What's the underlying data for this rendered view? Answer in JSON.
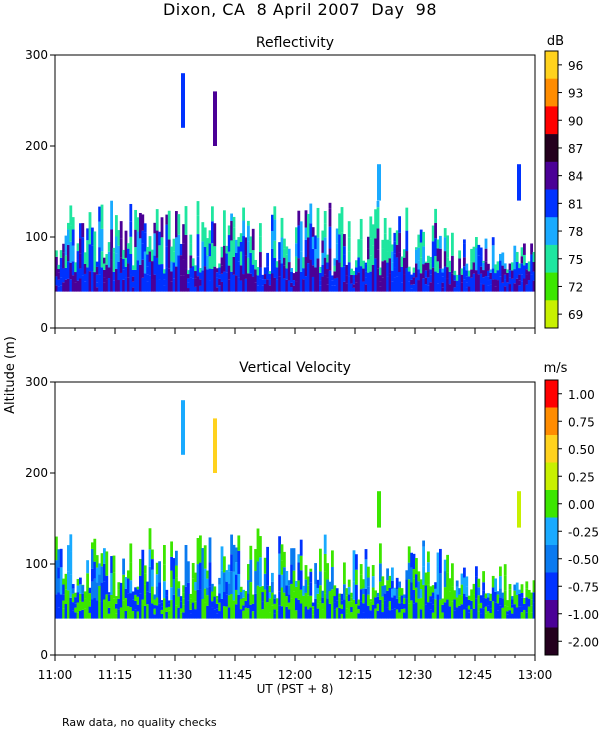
{
  "figure": {
    "title": "Dixon, CA  8 April 2007  Day  98",
    "footnote": "Raw data, no quality checks"
  },
  "chart_data": [
    {
      "type": "heatmap",
      "title": "Reflectivity",
      "colorbar_unit": "dB",
      "colorbar_ticks": [
        "96",
        "93",
        "90",
        "87",
        "84",
        "81",
        "78",
        "75",
        "72",
        "69"
      ],
      "colorbar_colors": [
        "#ffd21e",
        "#ff8c00",
        "#ff0000",
        "#24001e",
        "#4b0096",
        "#0032ff",
        "#19aaff",
        "#1fe6a0",
        "#3ce600",
        "#c8f000"
      ],
      "ylabel": "Altitude (m)",
      "ylim": [
        0,
        300
      ],
      "yticks": [
        0,
        100,
        200,
        300
      ],
      "xlim": [
        "11:00",
        "13:00"
      ],
      "base_altitude_m": 40,
      "echo_top_range_m": [
        60,
        140
      ],
      "dominant_values_dB": [
        75,
        78,
        81,
        84
      ],
      "elevated_echoes": [
        {
          "time": "11:32",
          "alt_range_m": [
            220,
            280
          ],
          "value_dB": 81
        },
        {
          "time": "11:40",
          "alt_range_m": [
            200,
            260
          ],
          "value_dB": 84
        },
        {
          "time": "12:21",
          "alt_range_m": [
            140,
            180
          ],
          "value_dB": 78
        },
        {
          "time": "12:56",
          "alt_range_m": [
            140,
            180
          ],
          "value_dB": 81
        }
      ]
    },
    {
      "type": "heatmap",
      "title": "Vertical Velocity",
      "colorbar_unit": "m/s",
      "colorbar_ticks": [
        "1.00",
        "0.75",
        "0.50",
        "0.25",
        "0.00",
        "-0.25",
        "-0.50",
        "-0.75",
        "-1.00",
        "-2.00"
      ],
      "colorbar_colors": [
        "#ff0000",
        "#ff8c00",
        "#ffd21e",
        "#c8f000",
        "#3ce600",
        "#19aaff",
        "#0a7af0",
        "#0032ff",
        "#4b0096",
        "#24001e"
      ],
      "ylabel": "Altitude (m)",
      "xlabel": "UT  (PST + 8)",
      "xticks": [
        "11:00",
        "11:15",
        "11:30",
        "11:45",
        "12:00",
        "12:15",
        "12:30",
        "12:45",
        "13:00"
      ],
      "ylim": [
        0,
        300
      ],
      "yticks": [
        0,
        100,
        200,
        300
      ],
      "base_altitude_m": 40,
      "echo_top_range_m": [
        60,
        140
      ],
      "dominant_values_ms": [
        -0.25,
        -0.5,
        -0.75,
        0.0
      ],
      "elevated_echoes": [
        {
          "time": "11:32",
          "alt_range_m": [
            220,
            280
          ],
          "value_ms": -0.25
        },
        {
          "time": "11:40",
          "alt_range_m": [
            200,
            260
          ],
          "value_ms": 0.5
        },
        {
          "time": "12:21",
          "alt_range_m": [
            140,
            180
          ],
          "value_ms": 0.0
        },
        {
          "time": "12:56",
          "alt_range_m": [
            140,
            180
          ],
          "value_ms": 0.25
        }
      ]
    }
  ]
}
